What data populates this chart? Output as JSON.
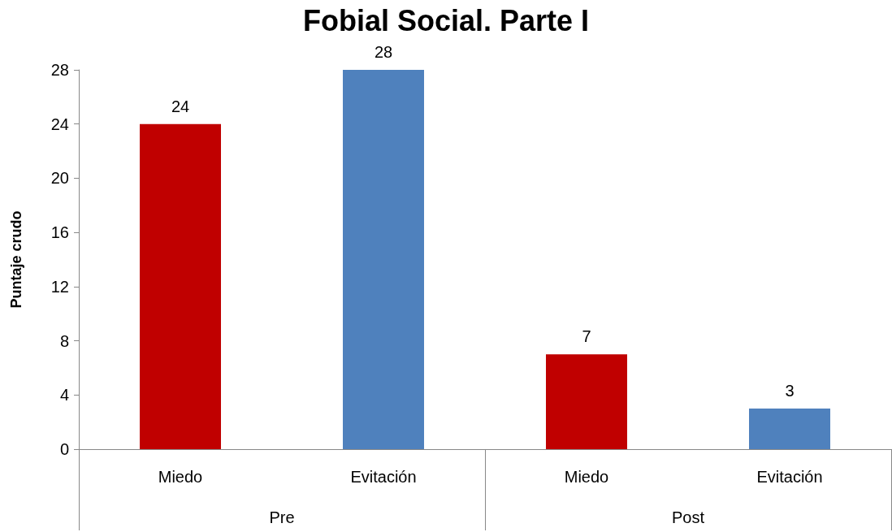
{
  "chart_data": {
    "type": "bar",
    "title": "Fobial Social. Parte I",
    "ylabel": "Puntaje crudo",
    "categories": [
      "Miedo",
      "Evitación",
      "Miedo",
      "Evitación"
    ],
    "values": [
      24,
      28,
      7,
      3
    ],
    "colors": [
      "#c00000",
      "#4f81bd",
      "#c00000",
      "#4f81bd"
    ],
    "ylim": [
      0,
      28
    ],
    "yticks": [
      0,
      4,
      8,
      12,
      16,
      20,
      24,
      28
    ],
    "data_labels": true,
    "grid": false,
    "annotations": [
      "Pre",
      "Post"
    ]
  }
}
